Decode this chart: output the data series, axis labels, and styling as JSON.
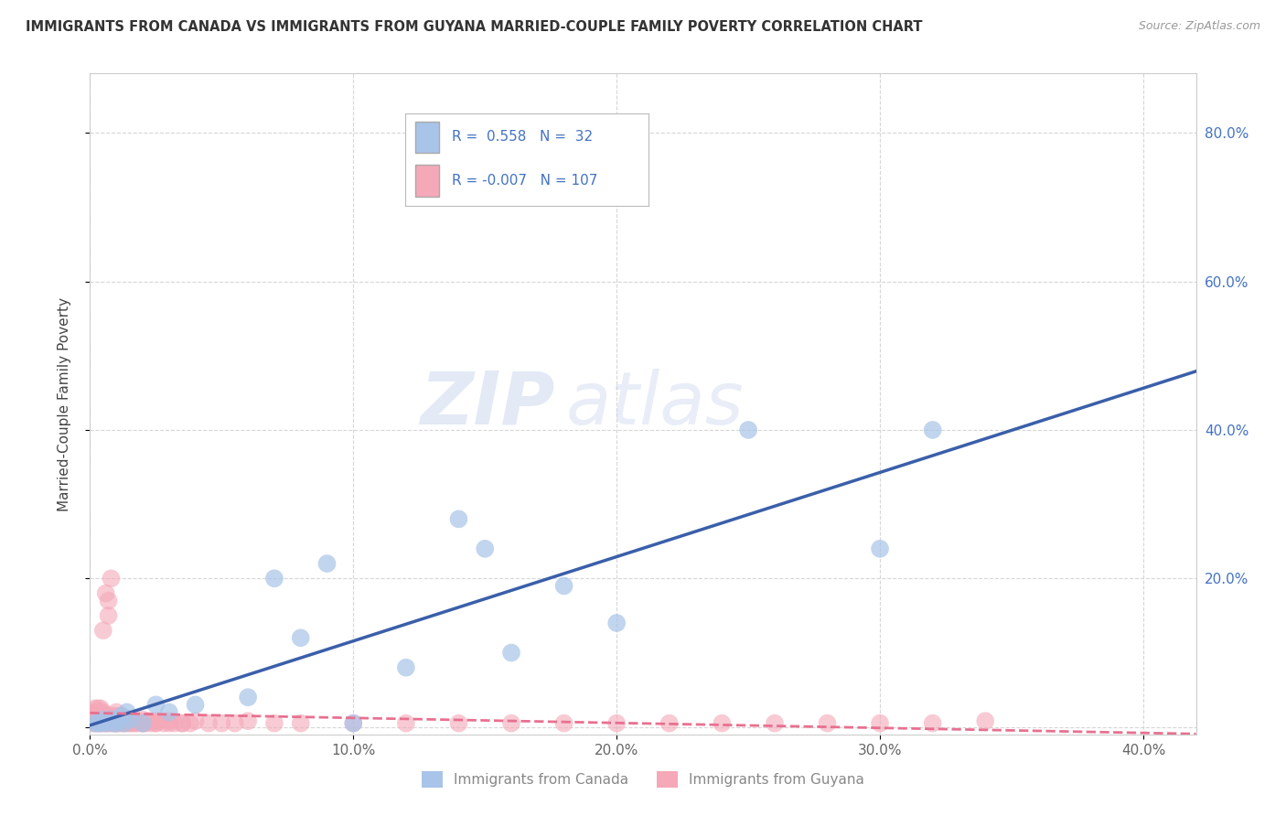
{
  "title": "IMMIGRANTS FROM CANADA VS IMMIGRANTS FROM GUYANA MARRIED-COUPLE FAMILY POVERTY CORRELATION CHART",
  "source": "Source: ZipAtlas.com",
  "ylabel": "Married-Couple Family Poverty",
  "xlabel_canada": "Immigrants from Canada",
  "xlabel_guyana": "Immigrants from Guyana",
  "xlim": [
    0.0,
    0.42
  ],
  "ylim": [
    -0.01,
    0.88
  ],
  "xticks": [
    0.0,
    0.1,
    0.2,
    0.3,
    0.4
  ],
  "yticks": [
    0.0,
    0.2,
    0.4,
    0.6,
    0.8
  ],
  "right_ytick_labels": [
    "",
    "20.0%",
    "40.0%",
    "60.0%",
    "80.0%"
  ],
  "xtick_labels": [
    "0.0%",
    "10.0%",
    "20.0%",
    "30.0%",
    "40.0%"
  ],
  "canada_R": 0.558,
  "canada_N": 32,
  "guyana_R": -0.007,
  "guyana_N": 107,
  "canada_color": "#a8c4e8",
  "guyana_color": "#f4a8b8",
  "canada_line_color": "#3a5faa",
  "guyana_line_color": "#e87090",
  "legend_text_color": "#4472c4",
  "watermark_zip": "ZIP",
  "watermark_atlas": "atlas",
  "background_color": "#ffffff",
  "canada_x": [
    0.002,
    0.003,
    0.004,
    0.005,
    0.006,
    0.007,
    0.008,
    0.009,
    0.01,
    0.011,
    0.012,
    0.013,
    0.014,
    0.015,
    0.02,
    0.025,
    0.03,
    0.04,
    0.06,
    0.07,
    0.08,
    0.09,
    0.1,
    0.12,
    0.14,
    0.15,
    0.16,
    0.18,
    0.2,
    0.25,
    0.3,
    0.32
  ],
  "canada_y": [
    0.005,
    0.005,
    0.005,
    0.01,
    0.005,
    0.008,
    0.01,
    0.005,
    0.005,
    0.01,
    0.015,
    0.005,
    0.02,
    0.01,
    0.005,
    0.03,
    0.02,
    0.03,
    0.04,
    0.2,
    0.12,
    0.22,
    0.005,
    0.08,
    0.28,
    0.24,
    0.1,
    0.19,
    0.14,
    0.4,
    0.24,
    0.4
  ],
  "guyana_x": [
    0.001,
    0.001,
    0.001,
    0.002,
    0.002,
    0.002,
    0.002,
    0.002,
    0.003,
    0.003,
    0.003,
    0.003,
    0.003,
    0.004,
    0.004,
    0.004,
    0.004,
    0.004,
    0.005,
    0.005,
    0.005,
    0.005,
    0.005,
    0.006,
    0.006,
    0.006,
    0.006,
    0.007,
    0.007,
    0.007,
    0.007,
    0.008,
    0.008,
    0.008,
    0.008,
    0.009,
    0.009,
    0.009,
    0.01,
    0.01,
    0.01,
    0.011,
    0.011,
    0.012,
    0.012,
    0.013,
    0.013,
    0.014,
    0.014,
    0.015,
    0.015,
    0.016,
    0.016,
    0.017,
    0.017,
    0.018,
    0.019,
    0.02,
    0.02,
    0.021,
    0.022,
    0.023,
    0.024,
    0.025,
    0.026,
    0.028,
    0.03,
    0.032,
    0.035,
    0.038,
    0.04,
    0.045,
    0.05,
    0.055,
    0.06,
    0.07,
    0.08,
    0.1,
    0.12,
    0.14,
    0.16,
    0.18,
    0.2,
    0.22,
    0.24,
    0.26,
    0.28,
    0.3,
    0.32,
    0.34,
    0.02,
    0.025,
    0.03,
    0.035,
    0.015,
    0.01,
    0.012,
    0.008,
    0.006,
    0.004,
    0.003,
    0.002,
    0.007,
    0.009,
    0.011,
    0.014,
    0.016
  ],
  "guyana_y": [
    0.005,
    0.01,
    0.018,
    0.005,
    0.01,
    0.015,
    0.02,
    0.025,
    0.005,
    0.01,
    0.015,
    0.02,
    0.025,
    0.005,
    0.01,
    0.015,
    0.02,
    0.025,
    0.005,
    0.01,
    0.015,
    0.02,
    0.13,
    0.005,
    0.01,
    0.015,
    0.18,
    0.005,
    0.01,
    0.15,
    0.17,
    0.005,
    0.01,
    0.015,
    0.2,
    0.005,
    0.01,
    0.015,
    0.005,
    0.01,
    0.02,
    0.005,
    0.015,
    0.005,
    0.015,
    0.005,
    0.01,
    0.005,
    0.01,
    0.005,
    0.01,
    0.005,
    0.01,
    0.005,
    0.008,
    0.005,
    0.008,
    0.005,
    0.01,
    0.005,
    0.008,
    0.005,
    0.008,
    0.005,
    0.008,
    0.005,
    0.008,
    0.005,
    0.005,
    0.005,
    0.008,
    0.005,
    0.005,
    0.005,
    0.008,
    0.005,
    0.005,
    0.005,
    0.005,
    0.005,
    0.005,
    0.005,
    0.005,
    0.005,
    0.005,
    0.005,
    0.005,
    0.005,
    0.005,
    0.008,
    0.005,
    0.005,
    0.005,
    0.005,
    0.01,
    0.005,
    0.008,
    0.008,
    0.01,
    0.012,
    0.01,
    0.012,
    0.008,
    0.01,
    0.008,
    0.01,
    0.008
  ]
}
